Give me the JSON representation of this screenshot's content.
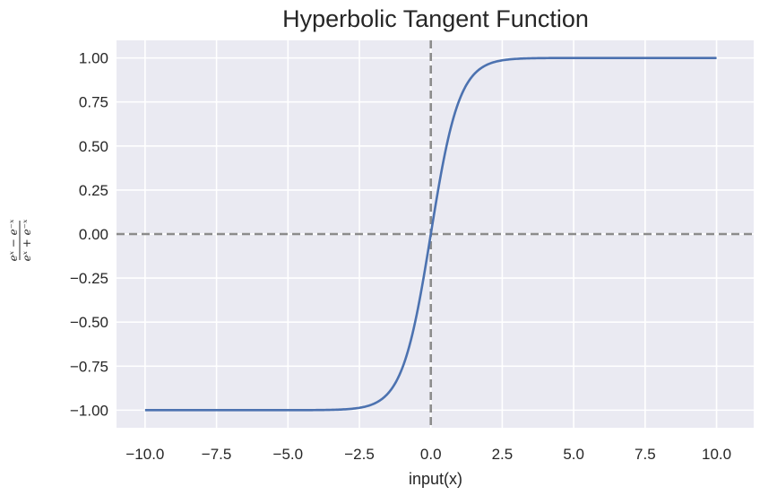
{
  "chart_data": {
    "type": "line",
    "title": "Hyperbolic Tangent Function",
    "xlabel": "input(x)",
    "ylabel": {
      "numerator": "eˣ − e⁻ˣ",
      "denominator": "eˣ + e⁻ˣ"
    },
    "xlim": [
      -11,
      11.3
    ],
    "ylim": [
      -1.1,
      1.1
    ],
    "xticks": [
      -10,
      -7.5,
      -5,
      -2.5,
      0,
      2.5,
      5,
      7.5,
      10
    ],
    "xtick_labels": [
      "−10.0",
      "−7.5",
      "−5.0",
      "−2.5",
      "0.0",
      "2.5",
      "5.0",
      "7.5",
      "10.0"
    ],
    "yticks": [
      1,
      0.75,
      0.5,
      0.25,
      0,
      -0.25,
      -0.5,
      -0.75,
      -1
    ],
    "ytick_labels": [
      "1.00",
      "0.75",
      "0.50",
      "0.25",
      "0.00",
      "−0.25",
      "−0.50",
      "−0.75",
      "−1.00"
    ],
    "grid": true,
    "series": [
      {
        "function": "tanh",
        "x_range": [
          -10,
          10
        ],
        "color": "#4c72b0"
      }
    ],
    "reference_lines": [
      {
        "orientation": "vertical",
        "x": 0,
        "color": "#8c8c8c",
        "style": "dashed"
      },
      {
        "orientation": "horizontal",
        "y": 0,
        "color": "#8c8c8c",
        "style": "dashed"
      }
    ],
    "colors": {
      "background": "#eaeaf2",
      "grid": "#ffffff"
    }
  }
}
